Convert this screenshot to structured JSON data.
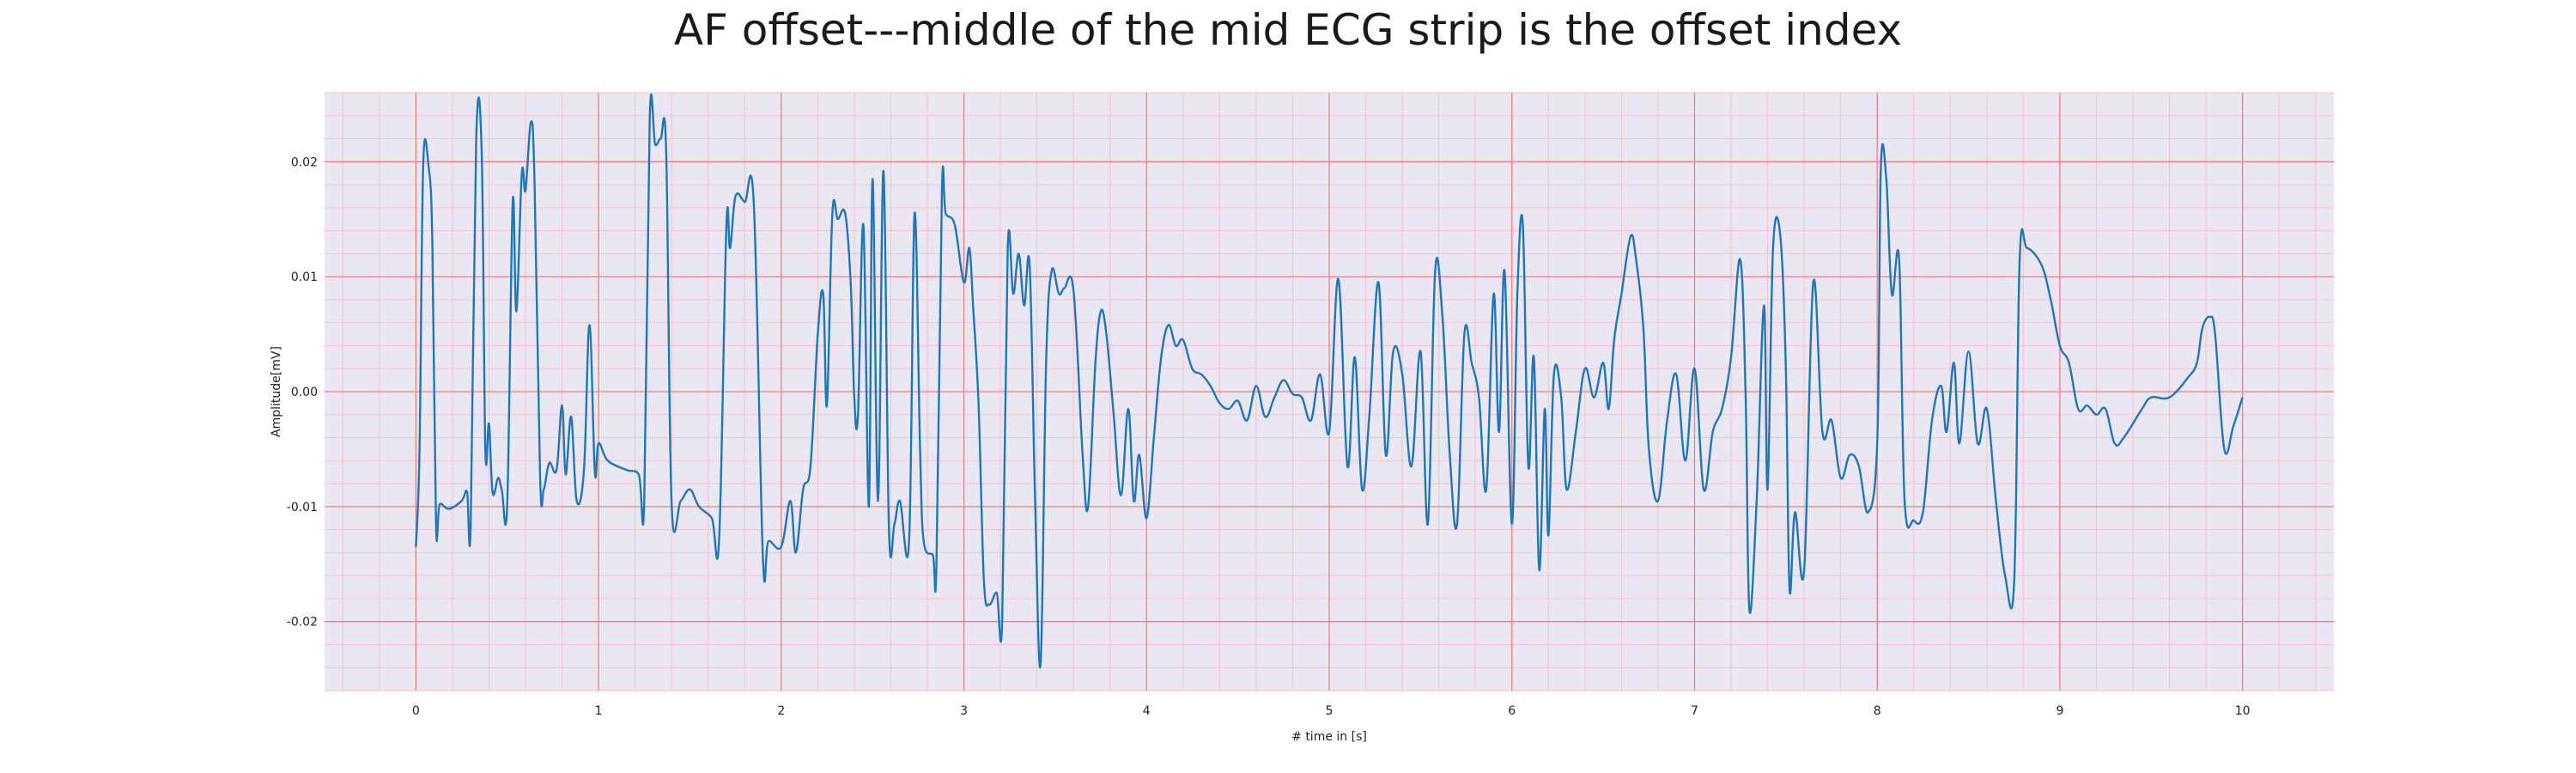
{
  "chart_data": {
    "type": "line",
    "title": "AF offset---middle of the mid ECG strip is the offset index",
    "xlabel": "# time in [s]",
    "ylabel": "Amplitude[mV]",
    "xlim": [
      -0.5,
      10.5
    ],
    "ylim": [
      -0.026,
      0.026
    ],
    "xticks": [
      0,
      1,
      2,
      3,
      4,
      5,
      6,
      7,
      8,
      9,
      10
    ],
    "xtick_labels": [
      "0",
      "1",
      "2",
      "3",
      "4",
      "5",
      "6",
      "7",
      "8",
      "9",
      "10"
    ],
    "yticks": [
      -0.02,
      -0.01,
      0.0,
      0.01,
      0.02
    ],
    "ytick_labels": [
      "-0.02",
      "-0.01",
      "0.00",
      "0.01",
      "0.02"
    ],
    "grid": true,
    "minor_grid": true,
    "colors": {
      "plot_background": "#eae7f2",
      "major_grid": "#f08080",
      "minor_grid": "#f6c2c8",
      "line": "#1f77b4"
    },
    "series": [
      {
        "points": [
          [
            0.0,
            -0.0135
          ],
          [
            0.02,
            -0.005
          ],
          [
            0.04,
            0.0198
          ],
          [
            0.07,
            0.0195
          ],
          [
            0.09,
            0.013
          ],
          [
            0.11,
            -0.0115
          ],
          [
            0.13,
            -0.0098
          ],
          [
            0.18,
            -0.0102
          ],
          [
            0.25,
            -0.0095
          ],
          [
            0.28,
            -0.0087
          ],
          [
            0.3,
            -0.0115
          ],
          [
            0.33,
            0.022
          ],
          [
            0.36,
            0.021
          ],
          [
            0.38,
            -0.005
          ],
          [
            0.4,
            -0.0028
          ],
          [
            0.42,
            -0.0088
          ],
          [
            0.45,
            -0.0075
          ],
          [
            0.47,
            -0.0085
          ],
          [
            0.5,
            -0.0098
          ],
          [
            0.53,
            0.0165
          ],
          [
            0.55,
            0.007
          ],
          [
            0.58,
            0.019
          ],
          [
            0.6,
            0.0175
          ],
          [
            0.63,
            0.0235
          ],
          [
            0.65,
            0.018
          ],
          [
            0.68,
            -0.0075
          ],
          [
            0.7,
            -0.0085
          ],
          [
            0.73,
            -0.0062
          ],
          [
            0.77,
            -0.0068
          ],
          [
            0.8,
            -0.0012
          ],
          [
            0.82,
            -0.0072
          ],
          [
            0.85,
            -0.0022
          ],
          [
            0.88,
            -0.0095
          ],
          [
            0.92,
            -0.0068
          ],
          [
            0.95,
            0.0058
          ],
          [
            0.98,
            -0.007
          ],
          [
            1.0,
            -0.0045
          ],
          [
            1.05,
            -0.006
          ],
          [
            1.15,
            -0.0068
          ],
          [
            1.22,
            -0.0072
          ],
          [
            1.25,
            -0.0095
          ],
          [
            1.28,
            0.0238
          ],
          [
            1.31,
            0.0215
          ],
          [
            1.34,
            0.022
          ],
          [
            1.37,
            0.021
          ],
          [
            1.4,
            -0.0098
          ],
          [
            1.45,
            -0.0095
          ],
          [
            1.5,
            -0.0085
          ],
          [
            1.55,
            -0.01
          ],
          [
            1.62,
            -0.011
          ],
          [
            1.66,
            -0.0128
          ],
          [
            1.7,
            0.0145
          ],
          [
            1.72,
            0.0125
          ],
          [
            1.75,
            0.017
          ],
          [
            1.8,
            0.0165
          ],
          [
            1.85,
            0.0163
          ],
          [
            1.9,
            -0.0145
          ],
          [
            1.93,
            -0.013
          ],
          [
            2.0,
            -0.0135
          ],
          [
            2.05,
            -0.0095
          ],
          [
            2.08,
            -0.014
          ],
          [
            2.12,
            -0.0085
          ],
          [
            2.16,
            -0.0065
          ],
          [
            2.2,
            0.005
          ],
          [
            2.23,
            0.0085
          ],
          [
            2.25,
            -0.0012
          ],
          [
            2.28,
            0.0155
          ],
          [
            2.31,
            0.015
          ],
          [
            2.35,
            0.0155
          ],
          [
            2.38,
            0.0095
          ],
          [
            2.4,
            -0.0005
          ],
          [
            2.42,
            -0.002
          ],
          [
            2.45,
            0.0145
          ],
          [
            2.48,
            -0.01
          ],
          [
            2.5,
            0.0185
          ],
          [
            2.53,
            -0.0095
          ],
          [
            2.56,
            0.0192
          ],
          [
            2.59,
            -0.012
          ],
          [
            2.62,
            -0.0115
          ],
          [
            2.65,
            -0.0095
          ],
          [
            2.7,
            -0.013
          ],
          [
            2.73,
            0.0155
          ],
          [
            2.76,
            -0.005
          ],
          [
            2.78,
            -0.013
          ],
          [
            2.83,
            -0.0142
          ],
          [
            2.85,
            -0.015
          ],
          [
            2.88,
            0.0175
          ],
          [
            2.9,
            0.0155
          ],
          [
            2.95,
            0.0145
          ],
          [
            3.0,
            0.0095
          ],
          [
            3.03,
            0.0125
          ],
          [
            3.05,
            0.0075
          ],
          [
            3.08,
            -0.001
          ],
          [
            3.11,
            -0.0165
          ],
          [
            3.14,
            -0.0185
          ],
          [
            3.18,
            -0.0175
          ],
          [
            3.21,
            -0.0198
          ],
          [
            3.24,
            0.0125
          ],
          [
            3.27,
            0.0085
          ],
          [
            3.3,
            0.012
          ],
          [
            3.33,
            0.0075
          ],
          [
            3.36,
            0.011
          ],
          [
            3.39,
            -0.0095
          ],
          [
            3.42,
            -0.0237
          ],
          [
            3.45,
            0.0025
          ],
          [
            3.48,
            0.0105
          ],
          [
            3.52,
            0.0085
          ],
          [
            3.55,
            0.009
          ],
          [
            3.6,
            0.0088
          ],
          [
            3.65,
            -0.0055
          ],
          [
            3.68,
            -0.01
          ],
          [
            3.72,
            0.0025
          ],
          [
            3.75,
            0.007
          ],
          [
            3.78,
            0.005
          ],
          [
            3.82,
            -0.002
          ],
          [
            3.86,
            -0.009
          ],
          [
            3.9,
            -0.0015
          ],
          [
            3.93,
            -0.0095
          ],
          [
            3.96,
            -0.0055
          ],
          [
            4.0,
            -0.011
          ],
          [
            4.04,
            -0.004
          ],
          [
            4.08,
            0.003
          ],
          [
            4.12,
            0.0058
          ],
          [
            4.16,
            0.004
          ],
          [
            4.2,
            0.0045
          ],
          [
            4.25,
            0.002
          ],
          [
            4.3,
            0.0015
          ],
          [
            4.35,
            0.0005
          ],
          [
            4.4,
            -0.001
          ],
          [
            4.45,
            -0.0015
          ],
          [
            4.5,
            -0.0008
          ],
          [
            4.55,
            -0.0025
          ],
          [
            4.6,
            0.0005
          ],
          [
            4.65,
            -0.0022
          ],
          [
            4.7,
            -0.0005
          ],
          [
            4.75,
            0.001
          ],
          [
            4.8,
            -0.0002
          ],
          [
            4.85,
            -0.0005
          ],
          [
            4.9,
            -0.0025
          ],
          [
            4.95,
            0.0015
          ],
          [
            5.0,
            -0.0035
          ],
          [
            5.05,
            0.0098
          ],
          [
            5.1,
            -0.0065
          ],
          [
            5.14,
            0.003
          ],
          [
            5.18,
            -0.0085
          ],
          [
            5.22,
            -0.002
          ],
          [
            5.27,
            0.0095
          ],
          [
            5.31,
            -0.0055
          ],
          [
            5.35,
            0.0035
          ],
          [
            5.4,
            0.0015
          ],
          [
            5.45,
            -0.0065
          ],
          [
            5.5,
            0.0035
          ],
          [
            5.54,
            -0.0115
          ],
          [
            5.58,
            0.0105
          ],
          [
            5.62,
            0.0065
          ],
          [
            5.66,
            -0.0055
          ],
          [
            5.7,
            -0.0115
          ],
          [
            5.74,
            0.005
          ],
          [
            5.78,
            0.0025
          ],
          [
            5.82,
            -0.0005
          ],
          [
            5.86,
            -0.0085
          ],
          [
            5.9,
            0.0085
          ],
          [
            5.93,
            -0.0035
          ],
          [
            5.96,
            0.0105
          ],
          [
            6.0,
            -0.0115
          ],
          [
            6.03,
            0.0085
          ],
          [
            6.06,
            0.0145
          ],
          [
            6.09,
            -0.0065
          ],
          [
            6.12,
            0.003
          ],
          [
            6.15,
            -0.0155
          ],
          [
            6.18,
            -0.0015
          ],
          [
            6.2,
            -0.0125
          ],
          [
            6.23,
            0.0015
          ],
          [
            6.27,
            -0.0005
          ],
          [
            6.3,
            -0.0085
          ],
          [
            6.35,
            -0.0035
          ],
          [
            6.4,
            0.002
          ],
          [
            6.45,
            -0.0005
          ],
          [
            6.5,
            0.0025
          ],
          [
            6.53,
            -0.0015
          ],
          [
            6.56,
            0.0045
          ],
          [
            6.6,
            0.0085
          ],
          [
            6.65,
            0.0135
          ],
          [
            6.68,
            0.0115
          ],
          [
            6.72,
            0.0055
          ],
          [
            6.75,
            -0.005
          ],
          [
            6.8,
            -0.0095
          ],
          [
            6.85,
            -0.0025
          ],
          [
            6.9,
            0.0015
          ],
          [
            6.95,
            -0.006
          ],
          [
            7.0,
            0.002
          ],
          [
            7.05,
            -0.0085
          ],
          [
            7.1,
            -0.0035
          ],
          [
            7.15,
            -0.0015
          ],
          [
            7.2,
            0.003
          ],
          [
            7.25,
            0.0115
          ],
          [
            7.28,
            -0.0005
          ],
          [
            7.3,
            -0.019
          ],
          [
            7.34,
            -0.0095
          ],
          [
            7.38,
            0.0075
          ],
          [
            7.4,
            -0.0085
          ],
          [
            7.43,
            0.0125
          ],
          [
            7.47,
            0.0135
          ],
          [
            7.5,
            0.002
          ],
          [
            7.52,
            -0.0172
          ],
          [
            7.55,
            -0.0105
          ],
          [
            7.6,
            -0.0155
          ],
          [
            7.65,
            0.0095
          ],
          [
            7.7,
            -0.0035
          ],
          [
            7.75,
            -0.0025
          ],
          [
            7.8,
            -0.0075
          ],
          [
            7.85,
            -0.0055
          ],
          [
            7.9,
            -0.0065
          ],
          [
            7.95,
            -0.0105
          ],
          [
            8.0,
            -0.0045
          ],
          [
            8.02,
            0.0195
          ],
          [
            8.05,
            0.0185
          ],
          [
            8.08,
            0.0085
          ],
          [
            8.12,
            0.0115
          ],
          [
            8.15,
            -0.0095
          ],
          [
            8.2,
            -0.0112
          ],
          [
            8.25,
            -0.0105
          ],
          [
            8.3,
            -0.0025
          ],
          [
            8.35,
            0.0005
          ],
          [
            8.38,
            -0.0035
          ],
          [
            8.42,
            0.0025
          ],
          [
            8.45,
            -0.0045
          ],
          [
            8.5,
            0.0035
          ],
          [
            8.55,
            -0.0045
          ],
          [
            8.6,
            -0.0015
          ],
          [
            8.65,
            -0.0095
          ],
          [
            8.7,
            -0.016
          ],
          [
            8.75,
            -0.0165
          ],
          [
            8.78,
            0.0115
          ],
          [
            8.82,
            0.0125
          ],
          [
            8.9,
            0.011
          ],
          [
            8.95,
            0.008
          ],
          [
            9.0,
            0.004
          ],
          [
            9.05,
            0.0025
          ],
          [
            9.1,
            -0.0015
          ],
          [
            9.15,
            -0.0012
          ],
          [
            9.2,
            -0.002
          ],
          [
            9.25,
            -0.0015
          ],
          [
            9.3,
            -0.0045
          ],
          [
            9.35,
            -0.004
          ],
          [
            9.45,
            -0.0015
          ],
          [
            9.5,
            -0.0005
          ],
          [
            9.6,
            -0.0005
          ],
          [
            9.7,
            0.0012
          ],
          [
            9.75,
            0.0025
          ],
          [
            9.78,
            0.0055
          ],
          [
            9.82,
            0.0065
          ],
          [
            9.85,
            0.005
          ],
          [
            9.9,
            -0.005
          ],
          [
            9.95,
            -0.003
          ],
          [
            10.0,
            -0.0005
          ]
        ]
      }
    ]
  }
}
